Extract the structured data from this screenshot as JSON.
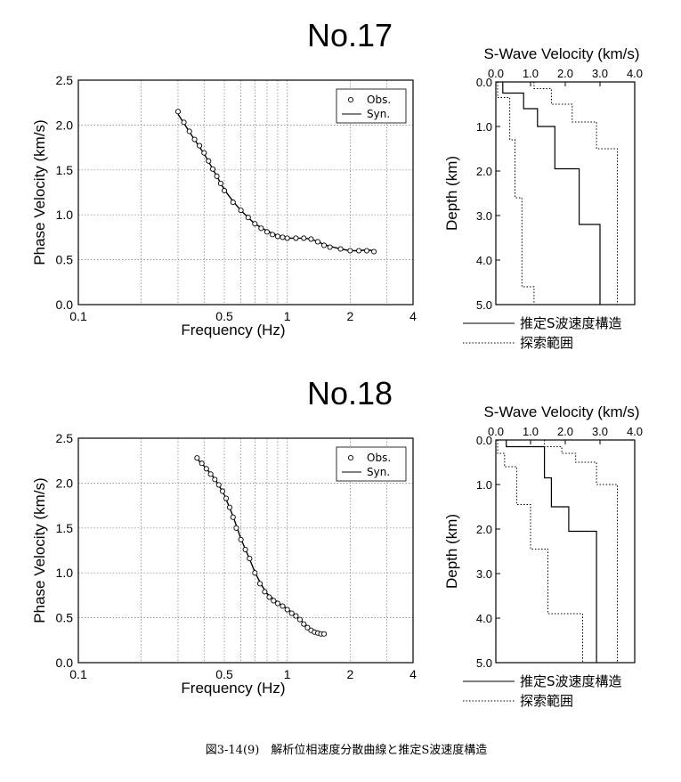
{
  "panels": [
    {
      "title": "No.17",
      "dispersion": {
        "ylabel": "Phase Velocity (km/s)",
        "xlabel": "Frequency (Hz)",
        "xticks": [
          "0.1",
          "0.5",
          "1",
          "2",
          "4"
        ],
        "yticks": [
          "0.0",
          "0.5",
          "1.0",
          "1.5",
          "2.0",
          "2.5"
        ],
        "legend": {
          "obs": "Obs.",
          "syn": "Syn."
        }
      },
      "profile": {
        "xlabel": "S-Wave Velocity (km/s)",
        "ylabel": "Depth (km)",
        "xticks": [
          "0.0",
          "1.0",
          "2.0",
          "3.0",
          "4.0"
        ],
        "yticks": [
          "0.0",
          "1.0",
          "2.0",
          "3.0",
          "4.0",
          "5.0"
        ],
        "legend": {
          "estimated": "推定S波速度構造",
          "range": "探索範囲"
        }
      }
    },
    {
      "title": "No.18",
      "dispersion": {
        "ylabel": "Phase Velocity (km/s)",
        "xlabel": "Frequency (Hz)",
        "xticks": [
          "0.1",
          "0.5",
          "1",
          "2",
          "4"
        ],
        "yticks": [
          "0.0",
          "0.5",
          "1.0",
          "1.5",
          "2.0",
          "2.5"
        ],
        "legend": {
          "obs": "Obs.",
          "syn": "Syn."
        }
      },
      "profile": {
        "xlabel": "S-Wave Velocity (km/s)",
        "ylabel": "Depth (km)",
        "xticks": [
          "0.0",
          "1.0",
          "2.0",
          "3.0",
          "4.0"
        ],
        "yticks": [
          "0.0",
          "1.0",
          "2.0",
          "3.0",
          "4.0",
          "5.0"
        ],
        "legend": {
          "estimated": "推定S波速度構造",
          "range": "探索範囲"
        }
      }
    }
  ],
  "caption": "図3-14(9)　解析位相速度分散曲線と推定S波速度構造",
  "chart_data": [
    {
      "type": "scatter",
      "title": "No.17",
      "xlabel": "Frequency (Hz)",
      "ylabel": "Phase Velocity (km/s)",
      "xscale": "log",
      "xlim": [
        0.1,
        4
      ],
      "ylim": [
        0,
        2.5
      ],
      "grid": true,
      "legend_position": "top-right",
      "series": [
        {
          "name": "Obs.",
          "marker": "open-circle",
          "x": [
            0.3,
            0.32,
            0.34,
            0.36,
            0.38,
            0.4,
            0.42,
            0.44,
            0.46,
            0.48,
            0.5,
            0.55,
            0.6,
            0.65,
            0.7,
            0.75,
            0.8,
            0.85,
            0.9,
            0.95,
            1.0,
            1.1,
            1.2,
            1.3,
            1.4,
            1.5,
            1.6,
            1.8,
            2.0,
            2.2,
            2.4,
            2.6
          ],
          "y": [
            2.15,
            2.03,
            1.93,
            1.84,
            1.77,
            1.69,
            1.6,
            1.51,
            1.43,
            1.35,
            1.27,
            1.14,
            1.05,
            0.97,
            0.9,
            0.85,
            0.81,
            0.78,
            0.76,
            0.75,
            0.74,
            0.74,
            0.74,
            0.73,
            0.7,
            0.66,
            0.64,
            0.62,
            0.6,
            0.6,
            0.6,
            0.59
          ]
        },
        {
          "name": "Syn.",
          "marker": "line",
          "x": [
            0.3,
            0.35,
            0.4,
            0.45,
            0.5,
            0.55,
            0.6,
            0.65,
            0.7,
            0.8,
            0.9,
            1.0,
            1.1,
            1.2,
            1.3,
            1.4,
            1.5,
            1.6,
            1.8,
            2.0,
            2.2,
            2.4,
            2.6
          ],
          "y": [
            2.12,
            1.88,
            1.68,
            1.47,
            1.28,
            1.15,
            1.05,
            0.97,
            0.9,
            0.82,
            0.77,
            0.74,
            0.74,
            0.74,
            0.73,
            0.7,
            0.67,
            0.65,
            0.62,
            0.6,
            0.6,
            0.61,
            0.6
          ]
        }
      ]
    },
    {
      "type": "line",
      "title": "No.17",
      "xlabel": "S-Wave Velocity (km/s)",
      "ylabel": "Depth (km)",
      "xlim": [
        0,
        4.0
      ],
      "ylim": [
        0,
        5.0
      ],
      "y_inverted": true,
      "x_axis_position": "top",
      "series": [
        {
          "name": "推定S波速度構造",
          "style": "solid",
          "x": [
            0.2,
            0.2,
            0.8,
            0.8,
            1.2,
            1.2,
            1.7,
            1.7,
            2.4,
            2.4,
            3.0,
            3.0
          ],
          "y": [
            0,
            0.25,
            0.25,
            0.6,
            0.6,
            1.0,
            1.0,
            1.95,
            1.95,
            3.2,
            3.2,
            5.0
          ]
        },
        {
          "name": "探索範囲",
          "style": "dotted",
          "bound": "lower",
          "x": [
            0.05,
            0.05,
            0.4,
            0.4,
            0.55,
            0.55,
            0.75,
            0.75,
            1.1,
            1.1
          ],
          "y": [
            0,
            0.35,
            0.35,
            1.3,
            1.3,
            2.6,
            2.6,
            4.6,
            4.6,
            5.0
          ]
        },
        {
          "name": "探索範囲",
          "style": "dotted",
          "bound": "upper",
          "x": [
            1.1,
            1.1,
            1.6,
            1.6,
            2.2,
            2.2,
            2.9,
            2.9,
            3.5,
            3.5
          ],
          "y": [
            0,
            0.15,
            0.15,
            0.5,
            0.5,
            0.9,
            0.9,
            1.5,
            1.5,
            5.0
          ]
        }
      ]
    },
    {
      "type": "scatter",
      "title": "No.18",
      "xlabel": "Frequency (Hz)",
      "ylabel": "Phase Velocity (km/s)",
      "xscale": "log",
      "xlim": [
        0.1,
        4
      ],
      "ylim": [
        0,
        2.5
      ],
      "grid": true,
      "legend_position": "top-right",
      "series": [
        {
          "name": "Obs.",
          "marker": "open-circle",
          "x": [
            0.37,
            0.39,
            0.41,
            0.43,
            0.45,
            0.47,
            0.49,
            0.51,
            0.53,
            0.55,
            0.57,
            0.6,
            0.63,
            0.66,
            0.7,
            0.74,
            0.78,
            0.82,
            0.86,
            0.9,
            0.95,
            1.0,
            1.05,
            1.1,
            1.15,
            1.2,
            1.25,
            1.3,
            1.35,
            1.4,
            1.45,
            1.5
          ],
          "y": [
            2.28,
            2.22,
            2.16,
            2.1,
            2.04,
            1.98,
            1.91,
            1.83,
            1.73,
            1.62,
            1.5,
            1.37,
            1.26,
            1.16,
            1.0,
            0.88,
            0.79,
            0.73,
            0.69,
            0.66,
            0.63,
            0.59,
            0.55,
            0.52,
            0.48,
            0.43,
            0.39,
            0.36,
            0.34,
            0.33,
            0.32,
            0.32
          ]
        },
        {
          "name": "Syn.",
          "marker": "line",
          "x": [
            0.37,
            0.4,
            0.45,
            0.5,
            0.55,
            0.6,
            0.65,
            0.7,
            0.75,
            0.8,
            0.9,
            1.0,
            1.1,
            1.2,
            1.3,
            1.4,
            1.5
          ],
          "y": [
            2.27,
            2.19,
            2.05,
            1.87,
            1.63,
            1.38,
            1.19,
            1.01,
            0.87,
            0.77,
            0.67,
            0.6,
            0.52,
            0.44,
            0.37,
            0.33,
            0.32
          ]
        }
      ]
    },
    {
      "type": "line",
      "title": "No.18",
      "xlabel": "S-Wave Velocity (km/s)",
      "ylabel": "Depth (km)",
      "xlim": [
        0,
        4.0
      ],
      "ylim": [
        0,
        5.0
      ],
      "y_inverted": true,
      "x_axis_position": "top",
      "series": [
        {
          "name": "推定S波速度構造",
          "style": "solid",
          "x": [
            0.3,
            0.3,
            1.4,
            1.4,
            1.6,
            1.6,
            2.1,
            2.1,
            2.6,
            2.6,
            2.9,
            2.9
          ],
          "y": [
            0,
            0.15,
            0.15,
            0.85,
            0.85,
            1.5,
            1.5,
            2.05,
            2.05,
            2.05,
            2.05,
            5.0
          ]
        },
        {
          "name": "探索範囲",
          "style": "dotted",
          "bound": "lower",
          "x": [
            0.05,
            0.05,
            0.25,
            0.25,
            0.6,
            0.6,
            1.0,
            1.0,
            1.5,
            1.5,
            2.5,
            2.5
          ],
          "y": [
            0,
            0.3,
            0.3,
            0.6,
            0.6,
            1.45,
            1.45,
            2.45,
            2.45,
            3.9,
            3.9,
            5.0
          ]
        },
        {
          "name": "探索範囲",
          "style": "dotted",
          "bound": "upper",
          "x": [
            1.4,
            1.4,
            1.9,
            1.9,
            2.3,
            2.3,
            2.9,
            2.9,
            3.5,
            3.5
          ],
          "y": [
            0,
            0.15,
            0.15,
            0.3,
            0.3,
            0.5,
            0.5,
            1.0,
            1.0,
            5.0
          ]
        }
      ]
    }
  ]
}
